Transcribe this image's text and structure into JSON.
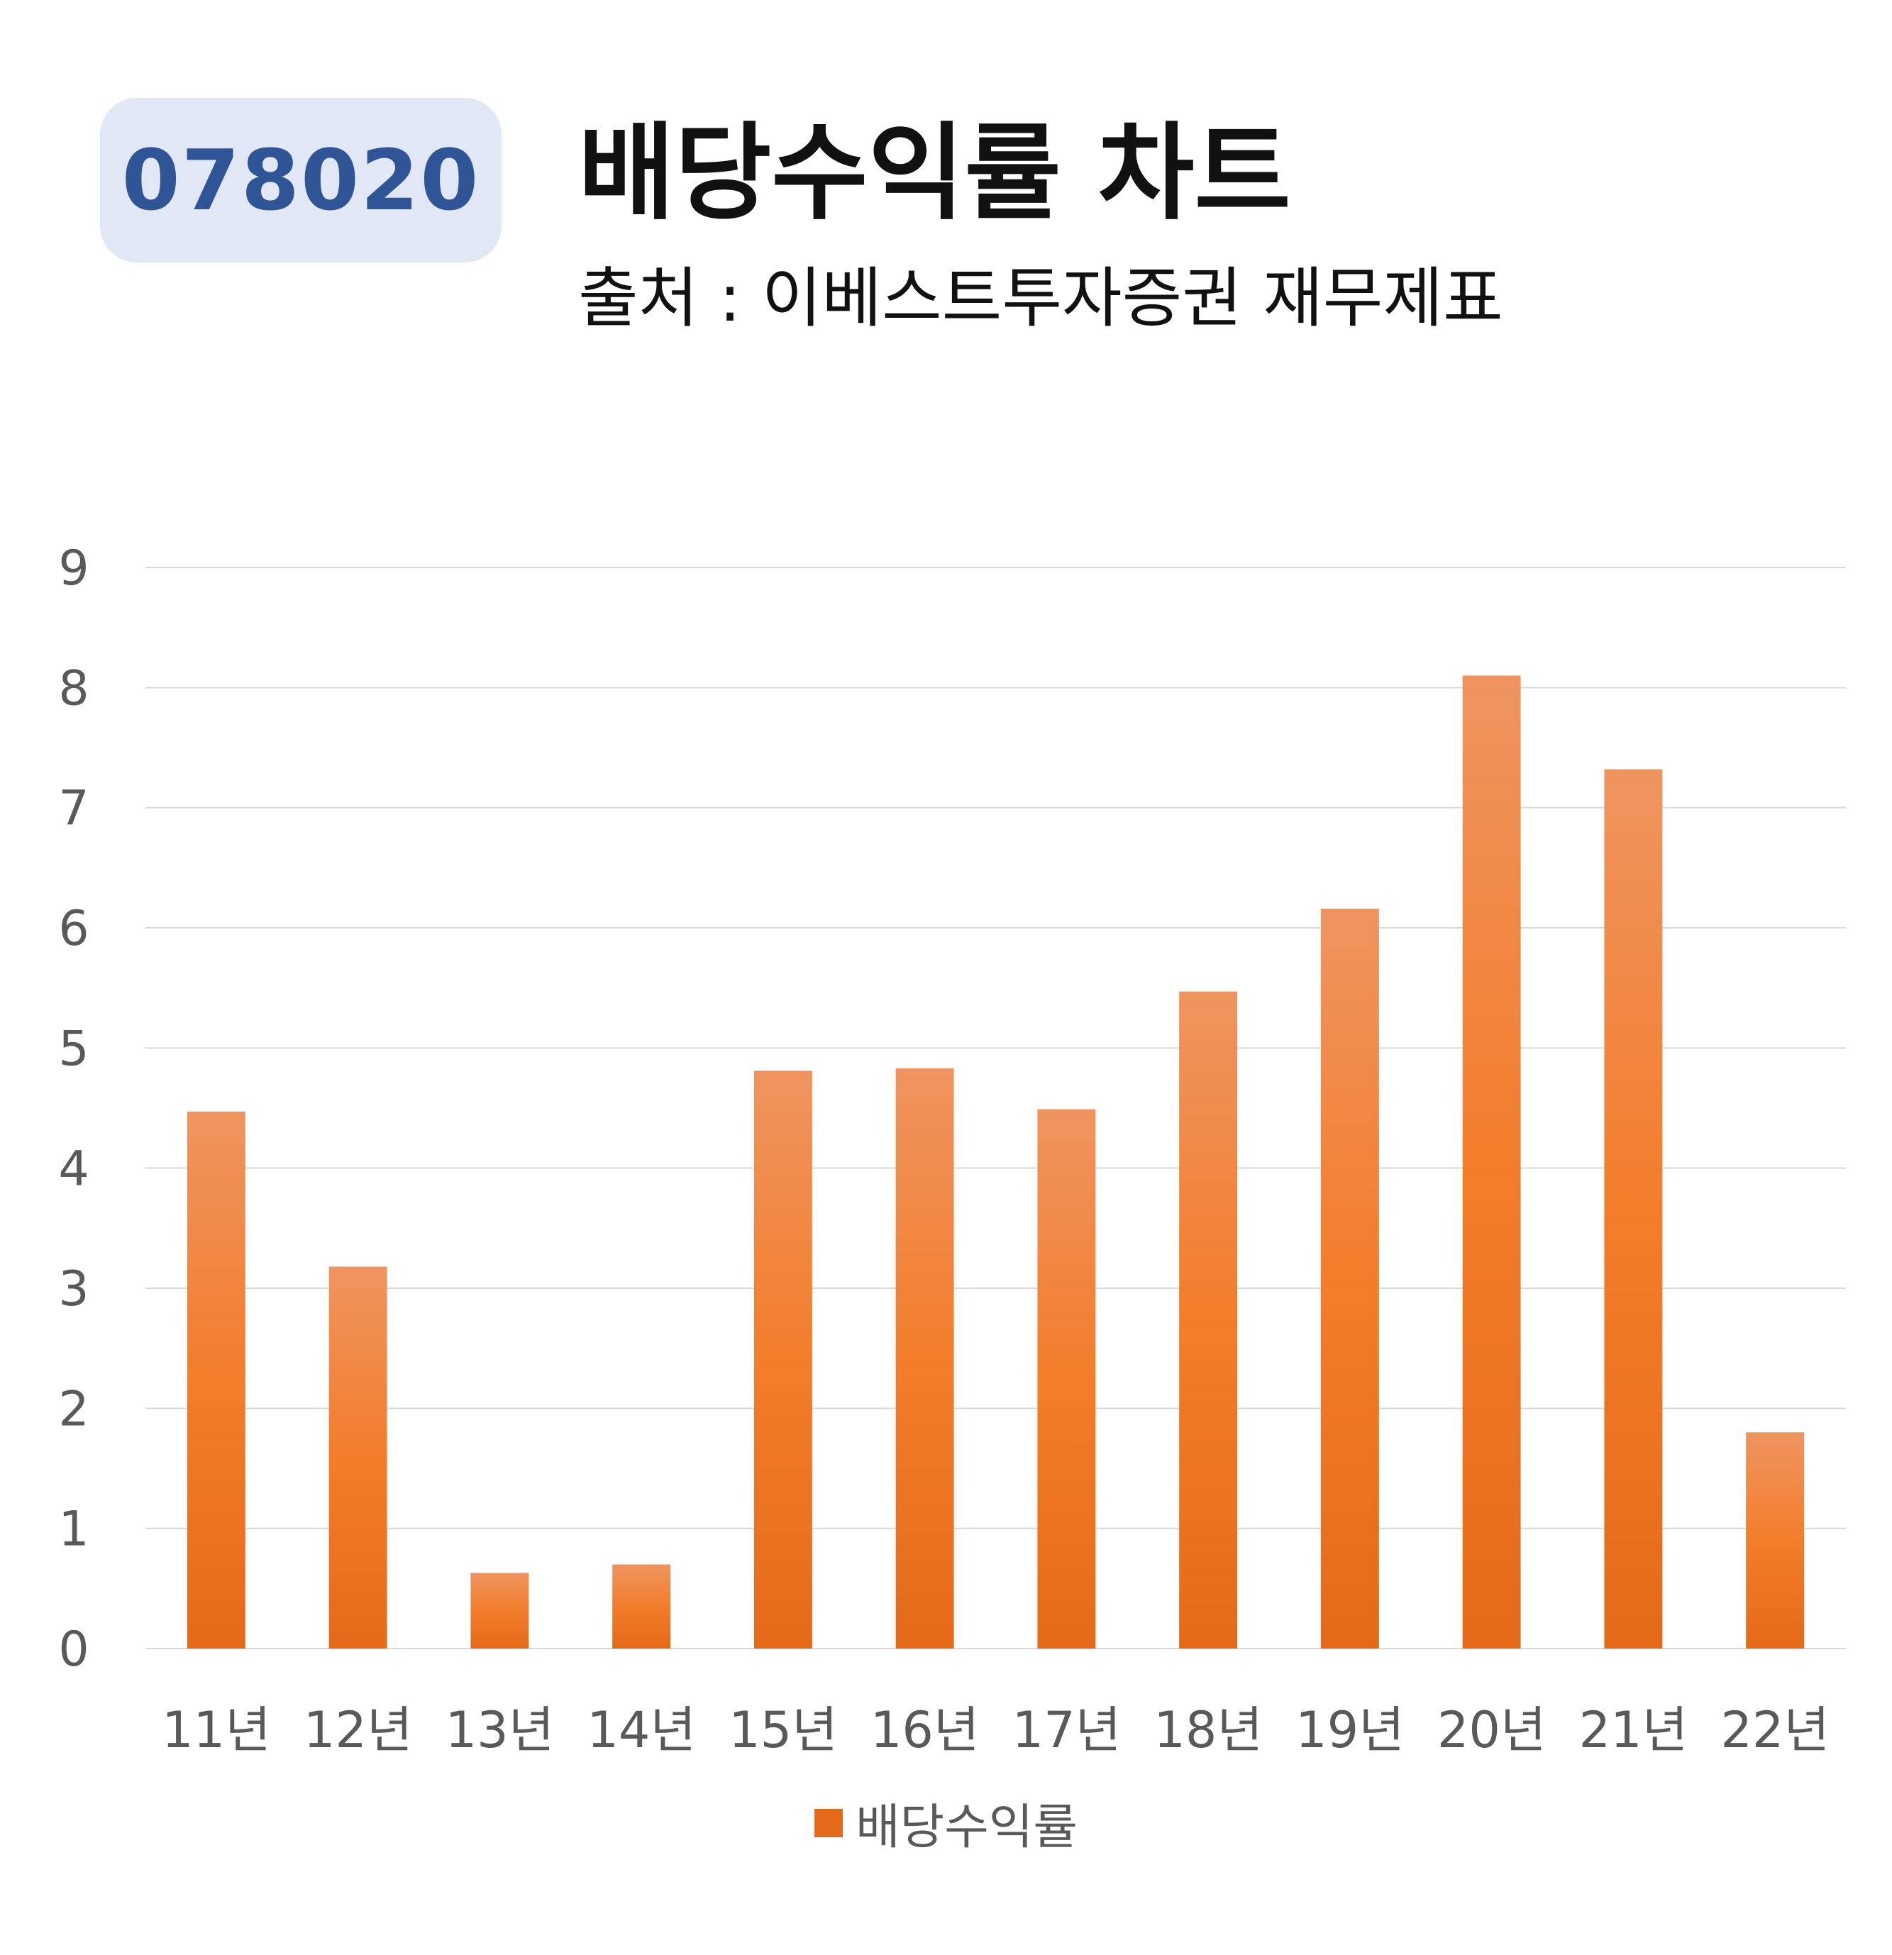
{
  "header": {
    "code_badge": "078020",
    "title": "배당수익률 차트",
    "subtitle": "출처 : 이베스트투자증권 재무제표"
  },
  "colors": {
    "bar_top": "#ef9460",
    "bar_bottom": "#e46a19",
    "gridline": "#d9d9d9",
    "axis_text": "#595959",
    "badge_bg": "#e1e7f4",
    "badge_text": "#2f5597"
  },
  "chart_data": {
    "type": "bar",
    "categories": [
      "11년",
      "12년",
      "13년",
      "14년",
      "15년",
      "16년",
      "17년",
      "18년",
      "19년",
      "20년",
      "21년",
      "22년"
    ],
    "series": [
      {
        "name": "배당수익률",
        "values": [
          4.47,
          3.18,
          0.63,
          0.7,
          4.81,
          4.83,
          4.49,
          5.47,
          6.16,
          8.1,
          7.32,
          1.8
        ]
      }
    ],
    "y_ticks": [
      0,
      1,
      2,
      3,
      4,
      5,
      6,
      7,
      8,
      9
    ],
    "ylim": [
      0,
      9
    ],
    "grid": true,
    "legend_position": "bottom"
  }
}
